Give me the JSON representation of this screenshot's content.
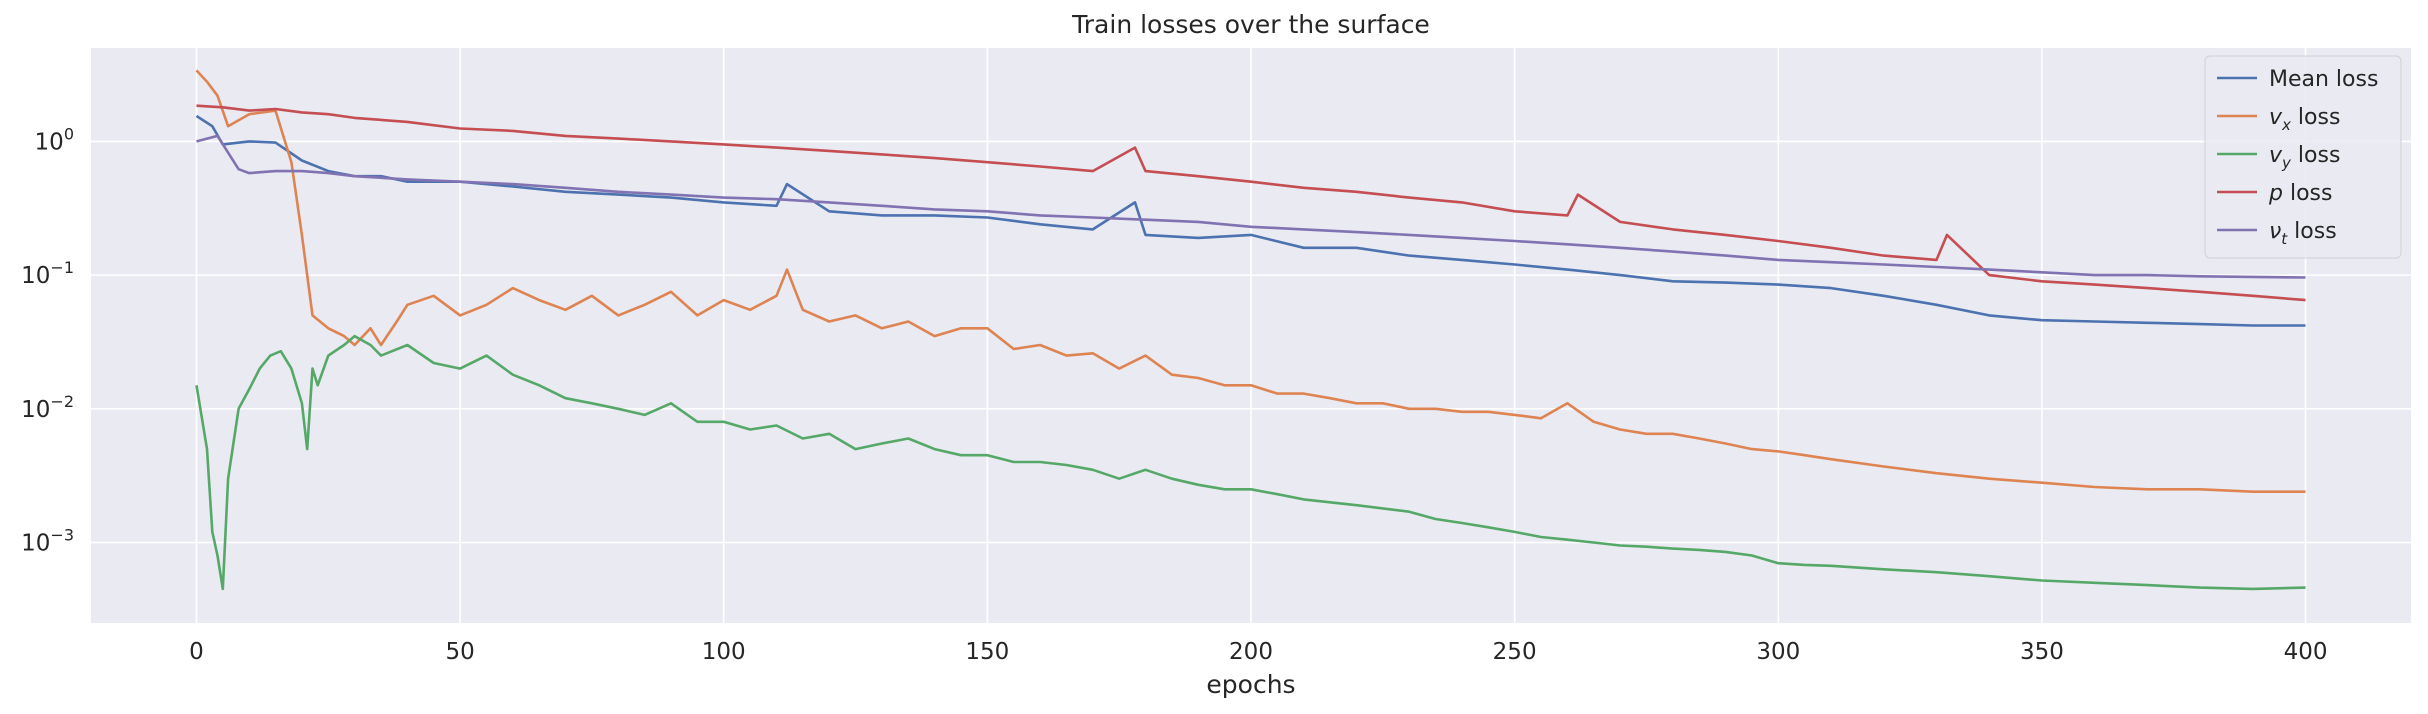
{
  "chart_data": {
    "type": "line",
    "title": "Train losses over the surface",
    "xlabel": "epochs",
    "ylabel": "",
    "xlim": [
      -20,
      420
    ],
    "ylim": [
      0.00025,
      5.0
    ],
    "yscale": "log",
    "grid": true,
    "legend_position": "top-right",
    "x_ticks": [
      0,
      50,
      100,
      150,
      200,
      250,
      300,
      350,
      400
    ],
    "x_tick_labels": [
      "0",
      "50",
      "100",
      "150",
      "200",
      "250",
      "300",
      "350",
      "400"
    ],
    "y_ticks": [
      1,
      0.1,
      0.01,
      0.001
    ],
    "y_tick_labels": [
      {
        "base": "10",
        "exp": "0"
      },
      {
        "base": "10",
        "exp": "−1"
      },
      {
        "base": "10",
        "exp": "−2"
      },
      {
        "base": "10",
        "exp": "−3"
      }
    ],
    "series": [
      {
        "name": "Mean loss",
        "legend_main": "Mean loss",
        "legend_sub": "",
        "legend_tail": "",
        "color": "#4c72b0",
        "x": [
          0,
          3,
          5,
          10,
          15,
          20,
          25,
          30,
          35,
          40,
          50,
          60,
          70,
          80,
          90,
          100,
          110,
          112,
          120,
          130,
          140,
          150,
          160,
          170,
          178,
          180,
          190,
          200,
          210,
          220,
          230,
          240,
          250,
          260,
          270,
          280,
          290,
          300,
          310,
          320,
          330,
          340,
          350,
          360,
          370,
          380,
          390,
          400
        ],
        "y": [
          1.55,
          1.3,
          0.95,
          1.0,
          0.98,
          0.72,
          0.6,
          0.55,
          0.55,
          0.5,
          0.5,
          0.46,
          0.42,
          0.4,
          0.38,
          0.35,
          0.33,
          0.48,
          0.3,
          0.28,
          0.28,
          0.27,
          0.24,
          0.22,
          0.35,
          0.2,
          0.19,
          0.2,
          0.16,
          0.16,
          0.14,
          0.13,
          0.12,
          0.11,
          0.1,
          0.09,
          0.088,
          0.085,
          0.08,
          0.07,
          0.06,
          0.05,
          0.046,
          0.045,
          0.044,
          0.043,
          0.042,
          0.042
        ]
      },
      {
        "name": "vx loss",
        "legend_main": "v",
        "legend_sub": "x",
        "legend_tail": " loss",
        "color": "#dd8452",
        "x": [
          0,
          2,
          4,
          6,
          10,
          15,
          18,
          20,
          22,
          25,
          28,
          30,
          33,
          35,
          38,
          40,
          45,
          50,
          55,
          60,
          65,
          70,
          75,
          80,
          85,
          90,
          95,
          100,
          105,
          110,
          112,
          115,
          120,
          125,
          130,
          135,
          140,
          145,
          150,
          155,
          160,
          165,
          170,
          175,
          180,
          185,
          190,
          195,
          200,
          205,
          210,
          215,
          220,
          225,
          230,
          235,
          240,
          245,
          250,
          255,
          260,
          265,
          270,
          275,
          280,
          285,
          290,
          295,
          300,
          305,
          310,
          320,
          330,
          340,
          350,
          360,
          370,
          380,
          390,
          400
        ],
        "y": [
          3.4,
          2.8,
          2.2,
          1.3,
          1.6,
          1.7,
          0.7,
          0.2,
          0.05,
          0.04,
          0.035,
          0.03,
          0.04,
          0.03,
          0.045,
          0.06,
          0.07,
          0.05,
          0.06,
          0.08,
          0.065,
          0.055,
          0.07,
          0.05,
          0.06,
          0.075,
          0.05,
          0.065,
          0.055,
          0.07,
          0.11,
          0.055,
          0.045,
          0.05,
          0.04,
          0.045,
          0.035,
          0.04,
          0.04,
          0.028,
          0.03,
          0.025,
          0.026,
          0.02,
          0.025,
          0.018,
          0.017,
          0.015,
          0.015,
          0.013,
          0.013,
          0.012,
          0.011,
          0.011,
          0.01,
          0.01,
          0.0095,
          0.0095,
          0.009,
          0.0085,
          0.011,
          0.008,
          0.007,
          0.0065,
          0.0065,
          0.006,
          0.0055,
          0.005,
          0.0048,
          0.0045,
          0.0042,
          0.0037,
          0.0033,
          0.003,
          0.0028,
          0.0026,
          0.0025,
          0.0025,
          0.0024,
          0.0024
        ]
      },
      {
        "name": "vy loss",
        "legend_main": "v",
        "legend_sub": "y",
        "legend_tail": " loss",
        "color": "#55a868",
        "x": [
          0,
          2,
          3,
          4,
          5,
          6,
          8,
          10,
          12,
          14,
          16,
          18,
          20,
          21,
          22,
          23,
          25,
          28,
          30,
          33,
          35,
          40,
          45,
          50,
          55,
          60,
          65,
          70,
          75,
          80,
          85,
          90,
          95,
          100,
          105,
          110,
          115,
          120,
          125,
          130,
          135,
          140,
          145,
          150,
          155,
          160,
          165,
          170,
          175,
          180,
          185,
          190,
          195,
          200,
          205,
          210,
          215,
          220,
          225,
          230,
          235,
          240,
          245,
          250,
          255,
          260,
          265,
          270,
          275,
          280,
          285,
          290,
          295,
          300,
          305,
          310,
          320,
          330,
          340,
          350,
          360,
          370,
          380,
          390,
          400
        ],
        "y": [
          0.015,
          0.005,
          0.0012,
          0.0008,
          0.00045,
          0.003,
          0.01,
          0.014,
          0.02,
          0.025,
          0.027,
          0.02,
          0.011,
          0.005,
          0.02,
          0.015,
          0.025,
          0.03,
          0.035,
          0.03,
          0.025,
          0.03,
          0.022,
          0.02,
          0.025,
          0.018,
          0.015,
          0.012,
          0.011,
          0.01,
          0.009,
          0.011,
          0.008,
          0.008,
          0.007,
          0.0075,
          0.006,
          0.0065,
          0.005,
          0.0055,
          0.006,
          0.005,
          0.0045,
          0.0045,
          0.004,
          0.004,
          0.0038,
          0.0035,
          0.003,
          0.0035,
          0.003,
          0.0027,
          0.0025,
          0.0025,
          0.0023,
          0.0021,
          0.002,
          0.0019,
          0.0018,
          0.0017,
          0.0015,
          0.0014,
          0.0013,
          0.0012,
          0.0011,
          0.00105,
          0.001,
          0.00095,
          0.00093,
          0.0009,
          0.00088,
          0.00085,
          0.0008,
          0.0007,
          0.00068,
          0.00067,
          0.00063,
          0.0006,
          0.00056,
          0.00052,
          0.0005,
          0.00048,
          0.00046,
          0.00045,
          0.00046
        ]
      },
      {
        "name": "p loss",
        "legend_main": "p",
        "legend_sub": "",
        "legend_tail": " loss",
        "color": "#c44e52",
        "x": [
          0,
          5,
          10,
          15,
          20,
          25,
          30,
          40,
          50,
          60,
          70,
          80,
          90,
          100,
          110,
          120,
          130,
          140,
          150,
          160,
          170,
          178,
          180,
          190,
          200,
          210,
          220,
          230,
          240,
          250,
          260,
          262,
          270,
          280,
          290,
          300,
          310,
          320,
          330,
          332,
          340,
          350,
          360,
          370,
          380,
          390,
          400
        ],
        "y": [
          1.85,
          1.8,
          1.7,
          1.75,
          1.65,
          1.6,
          1.5,
          1.4,
          1.25,
          1.2,
          1.1,
          1.05,
          1.0,
          0.95,
          0.9,
          0.85,
          0.8,
          0.75,
          0.7,
          0.65,
          0.6,
          0.9,
          0.6,
          0.55,
          0.5,
          0.45,
          0.42,
          0.38,
          0.35,
          0.3,
          0.28,
          0.4,
          0.25,
          0.22,
          0.2,
          0.18,
          0.16,
          0.14,
          0.13,
          0.2,
          0.1,
          0.09,
          0.085,
          0.08,
          0.075,
          0.07,
          0.065
        ]
      },
      {
        "name": "νt loss",
        "legend_main": "ν",
        "legend_sub": "t",
        "legend_tail": " loss",
        "color": "#8172b2",
        "x": [
          0,
          2,
          4,
          8,
          10,
          15,
          20,
          25,
          30,
          40,
          50,
          60,
          70,
          80,
          90,
          100,
          110,
          120,
          130,
          140,
          150,
          160,
          170,
          180,
          190,
          200,
          210,
          220,
          230,
          240,
          250,
          260,
          270,
          280,
          290,
          300,
          310,
          320,
          330,
          340,
          350,
          360,
          370,
          380,
          390,
          400
        ],
        "y": [
          1.0,
          1.05,
          1.1,
          0.62,
          0.58,
          0.6,
          0.6,
          0.58,
          0.55,
          0.52,
          0.5,
          0.48,
          0.45,
          0.42,
          0.4,
          0.38,
          0.37,
          0.35,
          0.33,
          0.31,
          0.3,
          0.28,
          0.27,
          0.26,
          0.25,
          0.23,
          0.22,
          0.21,
          0.2,
          0.19,
          0.18,
          0.17,
          0.16,
          0.15,
          0.14,
          0.13,
          0.125,
          0.12,
          0.115,
          0.11,
          0.105,
          0.1,
          0.1,
          0.098,
          0.097,
          0.096
        ]
      }
    ]
  }
}
